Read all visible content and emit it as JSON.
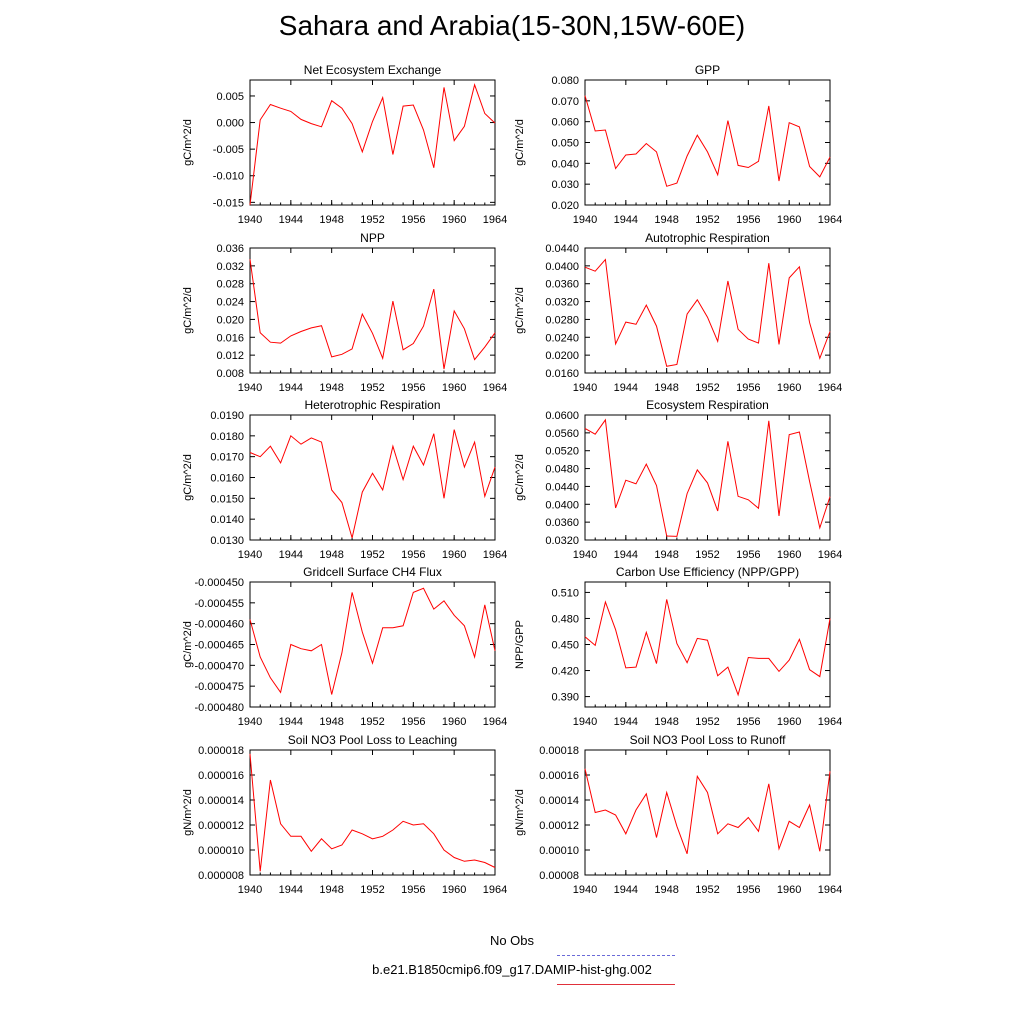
{
  "title": "Sahara and Arabia(15-30N,15W-60E)",
  "legend": [
    {
      "label": "No Obs",
      "color": "#6a6ad8",
      "dash": true
    },
    {
      "label": "b.e21.B1850cmip6.f09_g17.DAMIP-hist-ghg.002",
      "color": "#e0303a",
      "dash": false
    }
  ],
  "chart_data": [
    {
      "type": "line",
      "title": "Net Ecosystem Exchange",
      "ylabel": "gC/m^2/d",
      "xlim": [
        1940,
        1964
      ],
      "xticks": [
        1940,
        1944,
        1948,
        1952,
        1956,
        1960,
        1964
      ],
      "ylim": [
        -0.0155,
        0.008
      ],
      "yticks": [
        -0.015,
        -0.01,
        -0.005,
        0.0,
        0.005
      ],
      "ytick_labels": [
        "-0.015",
        "-0.010",
        "-0.005",
        "0.000",
        "0.005"
      ],
      "x": [
        1940,
        1941,
        1942,
        1943,
        1944,
        1945,
        1946,
        1947,
        1948,
        1949,
        1950,
        1951,
        1952,
        1953,
        1954,
        1955,
        1956,
        1957,
        1958,
        1959,
        1960,
        1961,
        1962,
        1963,
        1964
      ],
      "series": [
        {
          "values": [
            -0.0155,
            0.0005,
            0.0034,
            0.0027,
            0.0021,
            0.0006,
            -0.0002,
            -0.0008,
            0.0041,
            0.0027,
            -0.0002,
            -0.0055,
            0.0002,
            0.0047,
            -0.006,
            0.0031,
            0.0033,
            -0.0014,
            -0.0085,
            0.0066,
            -0.0034,
            -0.0007,
            0.0071,
            0.0017,
            -0.0001
          ],
          "color": "#ff0000"
        }
      ]
    },
    {
      "type": "line",
      "title": "GPP",
      "ylabel": "gC/m^2/d",
      "xlim": [
        1940,
        1964
      ],
      "xticks": [
        1940,
        1944,
        1948,
        1952,
        1956,
        1960,
        1964
      ],
      "ylim": [
        0.02,
        0.08
      ],
      "yticks": [
        0.02,
        0.03,
        0.04,
        0.05,
        0.06,
        0.07,
        0.08
      ],
      "ytick_labels": [
        "0.020",
        "0.030",
        "0.040",
        "0.050",
        "0.060",
        "0.070",
        "0.080"
      ],
      "x": [
        1940,
        1941,
        1942,
        1943,
        1944,
        1945,
        1946,
        1947,
        1948,
        1949,
        1950,
        1951,
        1952,
        1953,
        1954,
        1955,
        1956,
        1957,
        1958,
        1959,
        1960,
        1961,
        1962,
        1963,
        1964
      ],
      "series": [
        {
          "values": [
            0.0725,
            0.0555,
            0.056,
            0.0375,
            0.044,
            0.0445,
            0.0495,
            0.0455,
            0.029,
            0.0305,
            0.0435,
            0.0535,
            0.0455,
            0.0345,
            0.0605,
            0.039,
            0.038,
            0.041,
            0.0675,
            0.0315,
            0.0595,
            0.0575,
            0.0385,
            0.0335,
            0.043
          ],
          "color": "#ff0000"
        }
      ]
    },
    {
      "type": "line",
      "title": "NPP",
      "ylabel": "gC/m^2/d",
      "xlim": [
        1940,
        1964
      ],
      "xticks": [
        1940,
        1944,
        1948,
        1952,
        1956,
        1960,
        1964
      ],
      "ylim": [
        0.008,
        0.036
      ],
      "yticks": [
        0.008,
        0.012,
        0.016,
        0.02,
        0.024,
        0.028,
        0.032,
        0.036
      ],
      "ytick_labels": [
        "0.008",
        "0.012",
        "0.016",
        "0.020",
        "0.024",
        "0.028",
        "0.032",
        "0.036"
      ],
      "x": [
        1940,
        1941,
        1942,
        1943,
        1944,
        1945,
        1946,
        1947,
        1948,
        1949,
        1950,
        1951,
        1952,
        1953,
        1954,
        1955,
        1956,
        1957,
        1958,
        1959,
        1960,
        1961,
        1962,
        1963,
        1964
      ],
      "series": [
        {
          "values": [
            0.0335,
            0.017,
            0.0149,
            0.0147,
            0.0163,
            0.0173,
            0.0181,
            0.0186,
            0.0116,
            0.0122,
            0.0134,
            0.0212,
            0.0169,
            0.0113,
            0.0241,
            0.0132,
            0.0146,
            0.0185,
            0.0268,
            0.0089,
            0.0219,
            0.0179,
            0.011,
            0.0138,
            0.017
          ],
          "color": "#ff0000"
        }
      ]
    },
    {
      "type": "line",
      "title": "Autotrophic Respiration",
      "ylabel": "gC/m^2/d",
      "xlim": [
        1940,
        1964
      ],
      "xticks": [
        1940,
        1944,
        1948,
        1952,
        1956,
        1960,
        1964
      ],
      "ylim": [
        0.016,
        0.044
      ],
      "yticks": [
        0.016,
        0.02,
        0.024,
        0.028,
        0.032,
        0.036,
        0.04,
        0.044
      ],
      "ytick_labels": [
        "0.0160",
        "0.0200",
        "0.0240",
        "0.0280",
        "0.0320",
        "0.0360",
        "0.0400",
        "0.0440"
      ],
      "x": [
        1940,
        1941,
        1942,
        1943,
        1944,
        1945,
        1946,
        1947,
        1948,
        1949,
        1950,
        1951,
        1952,
        1953,
        1954,
        1955,
        1956,
        1957,
        1958,
        1959,
        1960,
        1961,
        1962,
        1963,
        1964
      ],
      "series": [
        {
          "values": [
            0.0397,
            0.0388,
            0.0414,
            0.0225,
            0.0274,
            0.0269,
            0.0312,
            0.0265,
            0.0175,
            0.0179,
            0.0292,
            0.0324,
            0.0285,
            0.0231,
            0.0366,
            0.0258,
            0.0236,
            0.0227,
            0.0406,
            0.0224,
            0.0373,
            0.0398,
            0.0273,
            0.0193,
            0.0253
          ],
          "color": "#ff0000"
        }
      ]
    },
    {
      "type": "line",
      "title": "Heterotrophic Respiration",
      "ylabel": "gC/m^2/d",
      "xlim": [
        1940,
        1964
      ],
      "xticks": [
        1940,
        1944,
        1948,
        1952,
        1956,
        1960,
        1964
      ],
      "ylim": [
        0.013,
        0.019
      ],
      "yticks": [
        0.013,
        0.014,
        0.015,
        0.016,
        0.017,
        0.018,
        0.019
      ],
      "ytick_labels": [
        "0.0130",
        "0.0140",
        "0.0150",
        "0.0160",
        "0.0170",
        "0.0180",
        "0.0190"
      ],
      "x": [
        1940,
        1941,
        1942,
        1943,
        1944,
        1945,
        1946,
        1947,
        1948,
        1949,
        1950,
        1951,
        1952,
        1953,
        1954,
        1955,
        1956,
        1957,
        1958,
        1959,
        1960,
        1961,
        1962,
        1963,
        1964
      ],
      "series": [
        {
          "values": [
            0.0172,
            0.017,
            0.0175,
            0.0167,
            0.018,
            0.0176,
            0.0179,
            0.0177,
            0.0154,
            0.0148,
            0.0131,
            0.0153,
            0.0162,
            0.0154,
            0.0175,
            0.0159,
            0.0175,
            0.0166,
            0.0181,
            0.015,
            0.0183,
            0.0165,
            0.0177,
            0.0151,
            0.0165
          ],
          "color": "#ff0000"
        }
      ]
    },
    {
      "type": "line",
      "title": "Ecosystem Respiration",
      "ylabel": "gC/m^2/d",
      "xlim": [
        1940,
        1964
      ],
      "xticks": [
        1940,
        1944,
        1948,
        1952,
        1956,
        1960,
        1964
      ],
      "ylim": [
        0.032,
        0.06
      ],
      "yticks": [
        0.032,
        0.036,
        0.04,
        0.044,
        0.048,
        0.052,
        0.056,
        0.06
      ],
      "ytick_labels": [
        "0.0320",
        "0.0360",
        "0.0400",
        "0.0440",
        "0.0480",
        "0.0520",
        "0.0560",
        "0.0600"
      ],
      "x": [
        1940,
        1941,
        1942,
        1943,
        1944,
        1945,
        1946,
        1947,
        1948,
        1949,
        1950,
        1951,
        1952,
        1953,
        1954,
        1955,
        1956,
        1957,
        1958,
        1959,
        1960,
        1961,
        1962,
        1963,
        1964
      ],
      "series": [
        {
          "values": [
            0.057,
            0.0557,
            0.0589,
            0.0392,
            0.0454,
            0.0446,
            0.049,
            0.0442,
            0.0329,
            0.0328,
            0.0424,
            0.0477,
            0.0448,
            0.0385,
            0.0541,
            0.0418,
            0.041,
            0.0391,
            0.0587,
            0.0374,
            0.0556,
            0.0562,
            0.0451,
            0.0347,
            0.0417
          ],
          "color": "#ff0000"
        }
      ]
    },
    {
      "type": "line",
      "title": "Gridcell Surface CH4 Flux",
      "ylabel": "gC/m^2/d",
      "xlim": [
        1940,
        1964
      ],
      "xticks": [
        1940,
        1944,
        1948,
        1952,
        1956,
        1960,
        1964
      ],
      "ylim": [
        -0.00048,
        -0.00045
      ],
      "yticks": [
        -0.00048,
        -0.000475,
        -0.00047,
        -0.000465,
        -0.00046,
        -0.000455,
        -0.00045
      ],
      "ytick_labels": [
        "-0.000480",
        "-0.000475",
        "-0.000470",
        "-0.000465",
        "-0.000460",
        "-0.000455",
        "-0.000450"
      ],
      "x": [
        1940,
        1941,
        1942,
        1943,
        1944,
        1945,
        1946,
        1947,
        1948,
        1949,
        1950,
        1951,
        1952,
        1953,
        1954,
        1955,
        1956,
        1957,
        1958,
        1959,
        1960,
        1961,
        1962,
        1963,
        1964
      ],
      "series": [
        {
          "values": [
            -0.000459,
            -0.000468,
            -0.000473,
            -0.0004765,
            -0.000465,
            -0.000466,
            -0.0004665,
            -0.000465,
            -0.000477,
            -0.000467,
            -0.0004525,
            -0.000462,
            -0.0004695,
            -0.000461,
            -0.000461,
            -0.0004605,
            -0.0004525,
            -0.0004515,
            -0.0004565,
            -0.0004545,
            -0.000458,
            -0.0004605,
            -0.000468,
            -0.0004555,
            -0.0004665
          ],
          "color": "#ff0000"
        }
      ]
    },
    {
      "type": "line",
      "title": "Carbon Use Efficiency (NPP/GPP)",
      "ylabel": "NPP/GPP",
      "xlim": [
        1940,
        1964
      ],
      "xticks": [
        1940,
        1944,
        1948,
        1952,
        1956,
        1960,
        1964
      ],
      "ylim": [
        0.378,
        0.522
      ],
      "yticks": [
        0.39,
        0.42,
        0.45,
        0.48,
        0.51
      ],
      "ytick_labels": [
        "0.390",
        "0.420",
        "0.450",
        "0.480",
        "0.510"
      ],
      "x": [
        1940,
        1941,
        1942,
        1943,
        1944,
        1945,
        1946,
        1947,
        1948,
        1949,
        1950,
        1951,
        1952,
        1953,
        1954,
        1955,
        1956,
        1957,
        1958,
        1959,
        1960,
        1961,
        1962,
        1963,
        1964
      ],
      "series": [
        {
          "values": [
            0.459,
            0.449,
            0.499,
            0.467,
            0.423,
            0.424,
            0.464,
            0.428,
            0.502,
            0.451,
            0.429,
            0.457,
            0.455,
            0.414,
            0.424,
            0.392,
            0.435,
            0.434,
            0.434,
            0.419,
            0.432,
            0.456,
            0.421,
            0.413,
            0.48
          ],
          "color": "#ff0000"
        }
      ]
    },
    {
      "type": "line",
      "title": "Soil NO3 Pool Loss to Leaching",
      "ylabel": "gN/m^2/d",
      "xlim": [
        1940,
        1964
      ],
      "xticks": [
        1940,
        1944,
        1948,
        1952,
        1956,
        1960,
        1964
      ],
      "ylim": [
        8e-06,
        1.8e-05
      ],
      "yticks": [
        8e-06,
        1e-05,
        1.2e-05,
        1.4e-05,
        1.6e-05,
        1.8e-05
      ],
      "ytick_labels": [
        "0.000008",
        "0.000010",
        "0.000012",
        "0.000014",
        "0.000016",
        "0.000018"
      ],
      "x": [
        1940,
        1941,
        1942,
        1943,
        1944,
        1945,
        1946,
        1947,
        1948,
        1949,
        1950,
        1951,
        1952,
        1953,
        1954,
        1955,
        1956,
        1957,
        1958,
        1959,
        1960,
        1961,
        1962,
        1963,
        1964
      ],
      "series": [
        {
          "values": [
            1.77e-05,
            8.3e-06,
            1.56e-05,
            1.21e-05,
            1.11e-05,
            1.11e-05,
            9.9e-06,
            1.09e-05,
            1.01e-05,
            1.04e-05,
            1.16e-05,
            1.13e-05,
            1.09e-05,
            1.11e-05,
            1.16e-05,
            1.23e-05,
            1.2e-05,
            1.21e-05,
            1.13e-05,
            1e-05,
            9.4e-06,
            9.1e-06,
            9.2e-06,
            9e-06,
            8.6e-06
          ],
          "color": "#ff0000"
        }
      ]
    },
    {
      "type": "line",
      "title": "Soil NO3 Pool Loss to Runoff",
      "ylabel": "gN/m^2/d",
      "xlim": [
        1940,
        1964
      ],
      "xticks": [
        1940,
        1944,
        1948,
        1952,
        1956,
        1960,
        1964
      ],
      "ylim": [
        8e-05,
        0.00018
      ],
      "yticks": [
        8e-05,
        0.0001,
        0.00012,
        0.00014,
        0.00016,
        0.00018
      ],
      "ytick_labels": [
        "0.00008",
        "0.00010",
        "0.00012",
        "0.00014",
        "0.00016",
        "0.00018"
      ],
      "x": [
        1940,
        1941,
        1942,
        1943,
        1944,
        1945,
        1946,
        1947,
        1948,
        1949,
        1950,
        1951,
        1952,
        1953,
        1954,
        1955,
        1956,
        1957,
        1958,
        1959,
        1960,
        1961,
        1962,
        1963,
        1964
      ],
      "series": [
        {
          "values": [
            0.000165,
            0.00013,
            0.000132,
            0.000128,
            0.000113,
            0.000132,
            0.000145,
            0.00011,
            0.000146,
            0.000119,
            9.7e-05,
            0.000159,
            0.000146,
            0.000113,
            0.000121,
            0.000118,
            0.000126,
            0.000115,
            0.000153,
            0.000101,
            0.000123,
            0.000118,
            0.000136,
            9.9e-05,
            0.000163
          ],
          "color": "#ff0000"
        }
      ]
    }
  ]
}
